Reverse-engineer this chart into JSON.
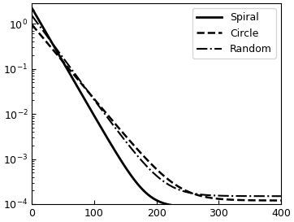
{
  "title": "",
  "xlabel": "",
  "ylabel": "",
  "xlim": [
    0,
    400
  ],
  "ylim_log": [
    -4,
    0.5
  ],
  "x_ticks": [
    0,
    100,
    200,
    300,
    400
  ],
  "y_ticks": [
    0.0001,
    0.001,
    0.01,
    0.1,
    1.0
  ],
  "series": [
    {
      "label": "Spiral",
      "linestyle": "solid",
      "linewidth": 2.0,
      "color": "#000000",
      "decay_a": 2.2,
      "decay_b": 0.045,
      "decay_c": 7e-05
    },
    {
      "label": "Circle",
      "linestyle": "dashed",
      "linewidth": 1.8,
      "color": "#000000",
      "decay_a": 1.0,
      "decay_b": 0.035,
      "decay_c": 0.00012
    },
    {
      "label": "Random",
      "linestyle": "dashdot",
      "linewidth": 1.5,
      "color": "#000000",
      "decay_a": 1.5,
      "decay_b": 0.038,
      "decay_c": 0.00015
    }
  ],
  "legend_loc": "upper right",
  "background_color": "#ffffff",
  "figsize": [
    3.62,
    2.73
  ],
  "dpi": 100
}
